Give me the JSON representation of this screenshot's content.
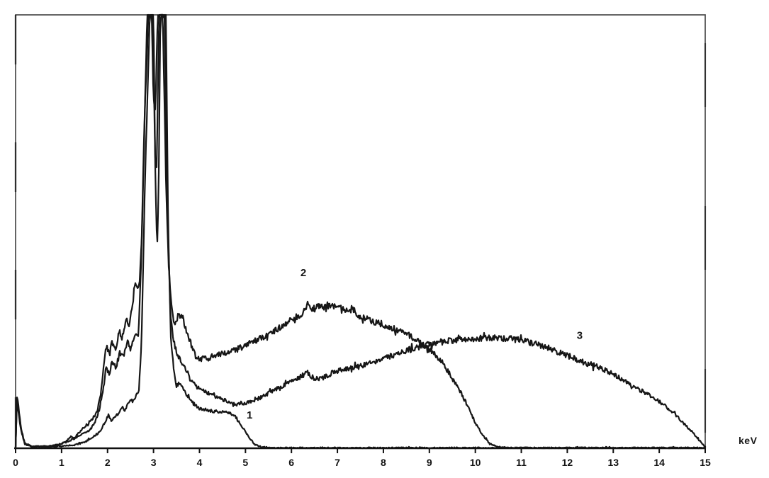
{
  "chart_data": {
    "type": "line",
    "title": "",
    "xlabel": "keV",
    "ylabel": "",
    "x_range": [
      0,
      15
    ],
    "x_ticks": [
      0,
      1,
      2,
      3,
      4,
      5,
      6,
      7,
      8,
      9,
      10,
      11,
      12,
      13,
      14,
      15
    ],
    "y_axis_note": "intensity axis unlabeled; values below are fraction of plot height (1.0 = clipped at top frame)",
    "grid": false,
    "legend_position": "none",
    "annotation_note": "Three X-ray spectra sharing a common characteristic peak complex near 2.9-3.3 keV (clipped at top); continuum end-points near 5.2, 10.3 and 14.9 keV",
    "colors": {
      "curve": "#161616",
      "frame": "#4a4a4a",
      "baseline": "#111111",
      "background": "#ffffff",
      "tick_text": "#111111"
    },
    "series": [
      {
        "name": "1",
        "label_pos": [
          5.09,
          0.077
        ],
        "points": [
          [
            0,
            0
          ],
          [
            0.03,
            0.12
          ],
          [
            0.07,
            0.09
          ],
          [
            0.12,
            0.045
          ],
          [
            0.2,
            0.012
          ],
          [
            0.35,
            0.004
          ],
          [
            0.7,
            0.003
          ],
          [
            1.0,
            0.005
          ],
          [
            1.3,
            0.008
          ],
          [
            1.5,
            0.014
          ],
          [
            1.7,
            0.027
          ],
          [
            1.85,
            0.04
          ],
          [
            1.95,
            0.062
          ],
          [
            2.02,
            0.078
          ],
          [
            2.08,
            0.065
          ],
          [
            2.15,
            0.072
          ],
          [
            2.22,
            0.078
          ],
          [
            2.3,
            0.095
          ],
          [
            2.38,
            0.088
          ],
          [
            2.48,
            0.11
          ],
          [
            2.55,
            0.105
          ],
          [
            2.62,
            0.125
          ],
          [
            2.68,
            0.127
          ],
          [
            2.74,
            0.25
          ],
          [
            2.81,
            0.6
          ],
          [
            2.92,
            1.0
          ],
          [
            3.0,
            1.0
          ],
          [
            3.04,
            0.62
          ],
          [
            3.08,
            0.46
          ],
          [
            3.11,
            0.6
          ],
          [
            3.15,
            1.0
          ],
          [
            3.27,
            1.0
          ],
          [
            3.32,
            0.5
          ],
          [
            3.38,
            0.24
          ],
          [
            3.44,
            0.183
          ],
          [
            3.5,
            0.145
          ],
          [
            3.58,
            0.152
          ],
          [
            3.66,
            0.135
          ],
          [
            3.75,
            0.118
          ],
          [
            3.85,
            0.105
          ],
          [
            4.0,
            0.092
          ],
          [
            4.2,
            0.087
          ],
          [
            4.4,
            0.085
          ],
          [
            4.6,
            0.083
          ],
          [
            4.75,
            0.078
          ],
          [
            4.85,
            0.062
          ],
          [
            5.0,
            0.038
          ],
          [
            5.1,
            0.022
          ],
          [
            5.2,
            0.009
          ],
          [
            5.35,
            0.003
          ],
          [
            5.6,
            0.001
          ],
          [
            15,
            0.001
          ]
        ]
      },
      {
        "name": "2",
        "label_pos": [
          6.26,
          0.405
        ],
        "points": [
          [
            0,
            0
          ],
          [
            0.03,
            0.115
          ],
          [
            0.07,
            0.085
          ],
          [
            0.12,
            0.042
          ],
          [
            0.2,
            0.011
          ],
          [
            0.35,
            0.004
          ],
          [
            0.7,
            0.004
          ],
          [
            0.95,
            0.008
          ],
          [
            1.1,
            0.016
          ],
          [
            1.2,
            0.027
          ],
          [
            1.28,
            0.023
          ],
          [
            1.38,
            0.036
          ],
          [
            1.5,
            0.05
          ],
          [
            1.62,
            0.062
          ],
          [
            1.75,
            0.078
          ],
          [
            1.85,
            0.12
          ],
          [
            1.93,
            0.2
          ],
          [
            1.98,
            0.238
          ],
          [
            2.04,
            0.215
          ],
          [
            2.1,
            0.245
          ],
          [
            2.17,
            0.228
          ],
          [
            2.25,
            0.27
          ],
          [
            2.32,
            0.255
          ],
          [
            2.4,
            0.3
          ],
          [
            2.47,
            0.285
          ],
          [
            2.55,
            0.34
          ],
          [
            2.6,
            0.385
          ],
          [
            2.65,
            0.365
          ],
          [
            2.7,
            0.39
          ],
          [
            2.75,
            0.5
          ],
          [
            2.8,
            0.72
          ],
          [
            2.86,
            1.0
          ],
          [
            2.96,
            1.0
          ],
          [
            3.0,
            0.8
          ],
          [
            3.04,
            0.78
          ],
          [
            3.09,
            1.0
          ],
          [
            3.2,
            1.0
          ],
          [
            3.27,
            0.62
          ],
          [
            3.33,
            0.42
          ],
          [
            3.4,
            0.32
          ],
          [
            3.45,
            0.285
          ],
          [
            3.55,
            0.31
          ],
          [
            3.63,
            0.302
          ],
          [
            3.72,
            0.27
          ],
          [
            3.8,
            0.245
          ],
          [
            3.9,
            0.215
          ],
          [
            4.0,
            0.205
          ],
          [
            4.15,
            0.207
          ],
          [
            4.3,
            0.212
          ],
          [
            4.5,
            0.218
          ],
          [
            4.75,
            0.225
          ],
          [
            5.0,
            0.237
          ],
          [
            5.25,
            0.25
          ],
          [
            5.5,
            0.262
          ],
          [
            5.75,
            0.278
          ],
          [
            5.95,
            0.29
          ],
          [
            6.1,
            0.305
          ],
          [
            6.2,
            0.3
          ],
          [
            6.35,
            0.332
          ],
          [
            6.45,
            0.32
          ],
          [
            6.55,
            0.328
          ],
          [
            6.7,
            0.325
          ],
          [
            6.85,
            0.33
          ],
          [
            7.0,
            0.327
          ],
          [
            7.15,
            0.318
          ],
          [
            7.3,
            0.32
          ],
          [
            7.45,
            0.305
          ],
          [
            7.6,
            0.3
          ],
          [
            7.8,
            0.292
          ],
          [
            8.0,
            0.285
          ],
          [
            8.2,
            0.277
          ],
          [
            8.4,
            0.27
          ],
          [
            8.6,
            0.258
          ],
          [
            8.86,
            0.24
          ],
          [
            9.1,
            0.218
          ],
          [
            9.3,
            0.198
          ],
          [
            9.5,
            0.16
          ],
          [
            9.7,
            0.125
          ],
          [
            9.85,
            0.095
          ],
          [
            10.0,
            0.058
          ],
          [
            10.15,
            0.032
          ],
          [
            10.3,
            0.012
          ],
          [
            10.45,
            0.004
          ],
          [
            10.7,
            0.001
          ],
          [
            15,
            0.001
          ]
        ]
      },
      {
        "name": "3",
        "label_pos": [
          12.27,
          0.261
        ],
        "points": [
          [
            0,
            0
          ],
          [
            0.03,
            0.11
          ],
          [
            0.07,
            0.08
          ],
          [
            0.12,
            0.04
          ],
          [
            0.2,
            0.01
          ],
          [
            0.35,
            0.004
          ],
          [
            0.7,
            0.004
          ],
          [
            0.95,
            0.009
          ],
          [
            1.15,
            0.016
          ],
          [
            1.3,
            0.024
          ],
          [
            1.45,
            0.032
          ],
          [
            1.6,
            0.04
          ],
          [
            1.72,
            0.057
          ],
          [
            1.82,
            0.09
          ],
          [
            1.9,
            0.13
          ],
          [
            1.97,
            0.188
          ],
          [
            2.03,
            0.17
          ],
          [
            2.1,
            0.2
          ],
          [
            2.18,
            0.185
          ],
          [
            2.27,
            0.222
          ],
          [
            2.35,
            0.21
          ],
          [
            2.44,
            0.245
          ],
          [
            2.52,
            0.235
          ],
          [
            2.6,
            0.262
          ],
          [
            2.67,
            0.252
          ],
          [
            2.73,
            0.42
          ],
          [
            2.8,
            0.75
          ],
          [
            2.89,
            1.0
          ],
          [
            2.99,
            1.0
          ],
          [
            3.03,
            0.68
          ],
          [
            3.07,
            0.64
          ],
          [
            3.12,
            1.0
          ],
          [
            3.24,
            1.0
          ],
          [
            3.3,
            0.55
          ],
          [
            3.37,
            0.3
          ],
          [
            3.44,
            0.245
          ],
          [
            3.52,
            0.215
          ],
          [
            3.6,
            0.2
          ],
          [
            3.7,
            0.185
          ],
          [
            3.8,
            0.158
          ],
          [
            3.95,
            0.14
          ],
          [
            4.1,
            0.132
          ],
          [
            4.3,
            0.122
          ],
          [
            4.6,
            0.108
          ],
          [
            4.8,
            0.1
          ],
          [
            5.05,
            0.105
          ],
          [
            5.35,
            0.118
          ],
          [
            5.66,
            0.136
          ],
          [
            5.95,
            0.152
          ],
          [
            6.2,
            0.165
          ],
          [
            6.35,
            0.175
          ],
          [
            6.5,
            0.16
          ],
          [
            6.7,
            0.163
          ],
          [
            6.95,
            0.178
          ],
          [
            7.2,
            0.182
          ],
          [
            7.5,
            0.19
          ],
          [
            7.8,
            0.2
          ],
          [
            8.1,
            0.21
          ],
          [
            8.4,
            0.222
          ],
          [
            8.7,
            0.232
          ],
          [
            9.0,
            0.24
          ],
          [
            9.3,
            0.246
          ],
          [
            9.7,
            0.251
          ],
          [
            10.0,
            0.2535
          ],
          [
            10.4,
            0.2545
          ],
          [
            10.8,
            0.2525
          ],
          [
            11.1,
            0.247
          ],
          [
            11.4,
            0.238
          ],
          [
            11.7,
            0.227
          ],
          [
            12.0,
            0.214
          ],
          [
            12.3,
            0.2
          ],
          [
            12.6,
            0.19
          ],
          [
            12.9,
            0.177
          ],
          [
            13.2,
            0.158
          ],
          [
            13.5,
            0.138
          ],
          [
            13.8,
            0.122
          ],
          [
            14.1,
            0.1
          ],
          [
            14.35,
            0.078
          ],
          [
            14.55,
            0.055
          ],
          [
            14.7,
            0.04
          ],
          [
            14.85,
            0.022
          ],
          [
            14.95,
            0.008
          ],
          [
            15.0,
            0.003
          ]
        ]
      }
    ]
  }
}
